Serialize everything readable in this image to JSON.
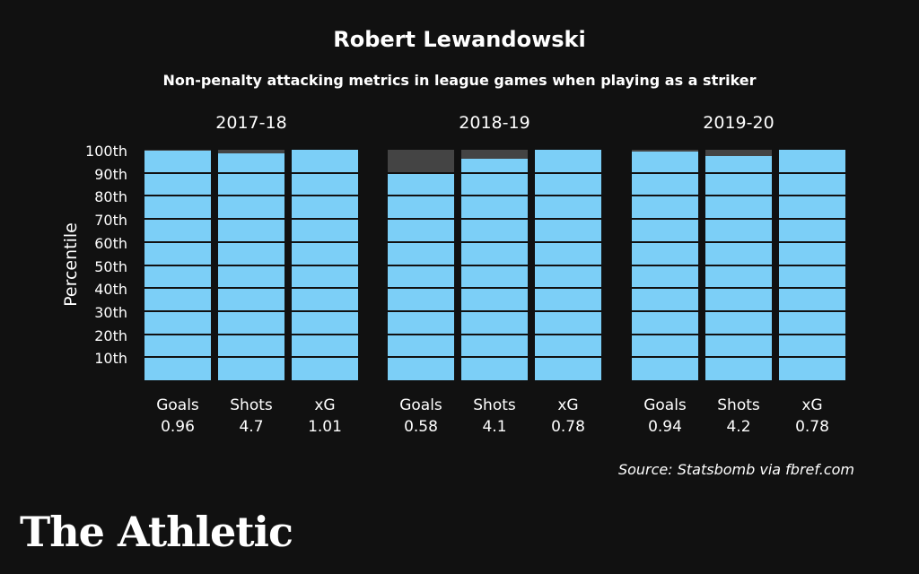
{
  "chart_data": {
    "type": "bar",
    "title": "Robert Lewandowski",
    "subtitle": "Non-penalty attacking metrics in league games when playing as a striker",
    "ylabel": "Percentile",
    "ylim": [
      0,
      100
    ],
    "yticks": [
      "100th",
      "90th",
      "80th",
      "70th",
      "60th",
      "50th",
      "40th",
      "30th",
      "20th",
      "10th"
    ],
    "seasons": [
      {
        "name": "2017-18",
        "metrics": [
          {
            "name": "Goals",
            "value_label": "0.96",
            "percentile": 99.5
          },
          {
            "name": "Shots",
            "value_label": "4.7",
            "percentile": 98.5
          },
          {
            "name": "xG",
            "value_label": "1.01",
            "percentile": 100
          }
        ]
      },
      {
        "name": "2018-19",
        "metrics": [
          {
            "name": "Goals",
            "value_label": "0.58",
            "percentile": 90
          },
          {
            "name": "Shots",
            "value_label": "4.1",
            "percentile": 96
          },
          {
            "name": "xG",
            "value_label": "0.78",
            "percentile": 100
          }
        ]
      },
      {
        "name": "2019-20",
        "metrics": [
          {
            "name": "Goals",
            "value_label": "0.94",
            "percentile": 99.2
          },
          {
            "name": "Shots",
            "value_label": "4.2",
            "percentile": 97.4
          },
          {
            "name": "xG",
            "value_label": "0.78",
            "percentile": 100
          }
        ]
      }
    ],
    "colors": {
      "fill": "#7ccff7",
      "remainder": "#444444",
      "background": "#111111"
    },
    "grid": true,
    "source": "Source: Statsbomb via fbref.com"
  },
  "brand": {
    "logo_text": "The Athletic"
  }
}
